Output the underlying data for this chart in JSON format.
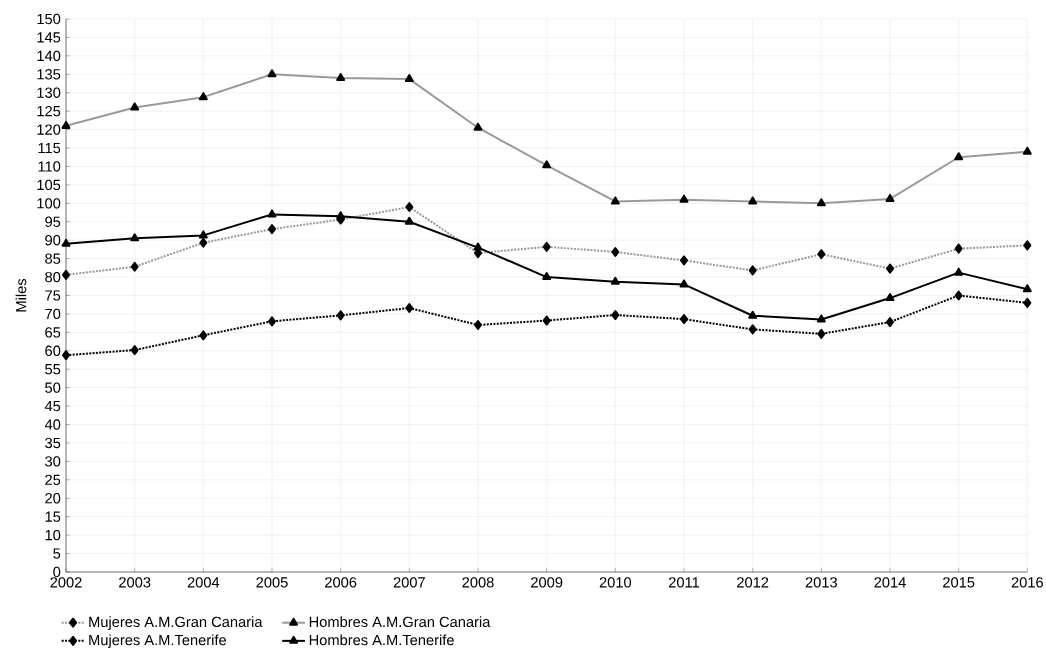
{
  "chart_data": {
    "type": "line",
    "ylabel": "Miles",
    "x": [
      2002,
      2003,
      2004,
      2005,
      2006,
      2007,
      2008,
      2009,
      2010,
      2011,
      2012,
      2013,
      2014,
      2015,
      2016
    ],
    "xlim": [
      2002,
      2016
    ],
    "xticks": [
      2002,
      2003,
      2004,
      2005,
      2006,
      2007,
      2008,
      2009,
      2010,
      2011,
      2012,
      2013,
      2014,
      2015,
      2016
    ],
    "ylim": [
      0,
      150
    ],
    "yticks": [
      0,
      5,
      10,
      15,
      20,
      25,
      30,
      35,
      40,
      45,
      50,
      55,
      60,
      65,
      70,
      75,
      80,
      85,
      90,
      95,
      100,
      105,
      110,
      115,
      120,
      125,
      130,
      135,
      140,
      145,
      150
    ],
    "grid": true,
    "legend": "bottom",
    "series": [
      {
        "name": "Mujeres A.M.Gran Canaria",
        "color": "#999999",
        "marker": "diamond",
        "line_style": "dotted",
        "values": [
          80.6,
          82.8,
          89.3,
          93,
          95.6,
          99,
          86.5,
          88.2,
          86.8,
          84.5,
          81.8,
          86.2,
          82.3,
          87.7,
          88.6
        ]
      },
      {
        "name": "Hombres A.M.Gran Canaria",
        "color": "#999999",
        "marker": "triangle",
        "line_style": "solid",
        "values": [
          121,
          126,
          128.8,
          135,
          134,
          133.7,
          120.5,
          110.3,
          100.5,
          101,
          100.5,
          100,
          101.2,
          112.5,
          114
        ]
      },
      {
        "name": "Mujeres A.M.Tenerife",
        "color": "#000000",
        "marker": "diamond",
        "line_style": "dotted",
        "values": [
          58.8,
          60.2,
          64.2,
          68,
          69.6,
          71.6,
          67,
          68.2,
          69.7,
          68.6,
          65.8,
          64.6,
          67.8,
          75,
          73
        ]
      },
      {
        "name": "Hombres A.M.Tenerife",
        "color": "#000000",
        "marker": "triangle",
        "line_style": "solid",
        "values": [
          89,
          90.5,
          91.3,
          97,
          96.5,
          95,
          88,
          80,
          78.7,
          78,
          69.5,
          68.5,
          74.3,
          81.2,
          76.7
        ]
      }
    ]
  }
}
